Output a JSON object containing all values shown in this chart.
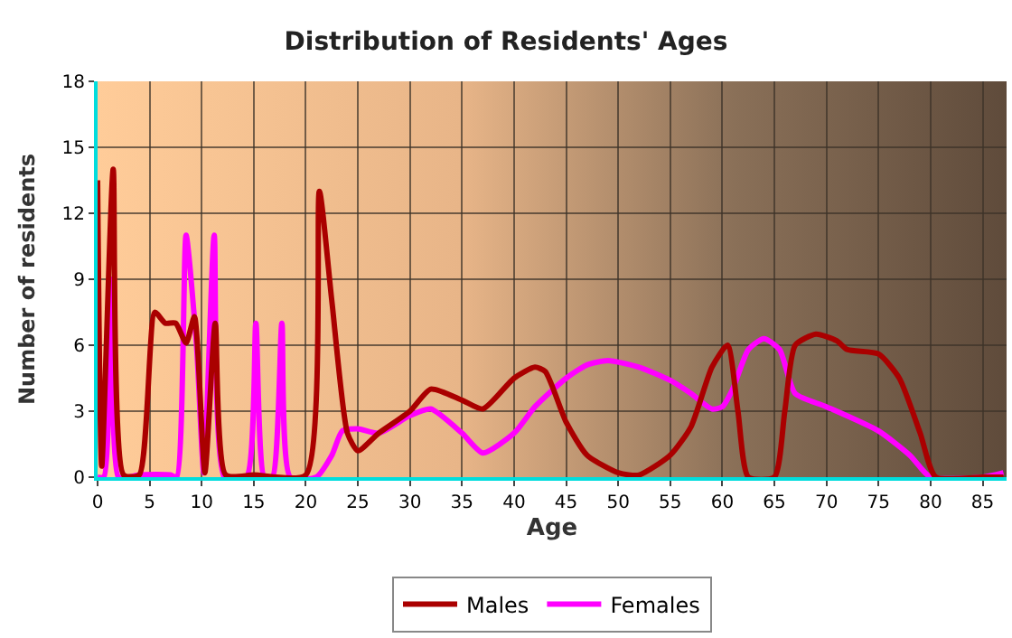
{
  "chart_data": {
    "type": "line",
    "title": "Distribution of Residents' Ages",
    "xlabel": "Age",
    "ylabel": "Number of residents",
    "xlim": [
      0,
      87.3
    ],
    "xticks": [
      0,
      5,
      10,
      15,
      20,
      25,
      30,
      35,
      40,
      45,
      50,
      55,
      60,
      65,
      70,
      75,
      80,
      85
    ],
    "ylim": [
      0,
      18
    ],
    "yticks": [
      0,
      3,
      6,
      9,
      12,
      15,
      18
    ],
    "grid": true,
    "legend": "bottom",
    "marker": "none",
    "line_style": "solid",
    "series": [
      {
        "name": "Males",
        "color": "#aa0000",
        "x": [
          0,
          0.4,
          1.5,
          2.5,
          4,
          5.5,
          6.5,
          7.5,
          8.5,
          9.3,
          10.3,
          11.3,
          12.3,
          15,
          20,
          21.3,
          22.5,
          24,
          25,
          27,
          30,
          32,
          35,
          37,
          40,
          42,
          43,
          45,
          47,
          50,
          52,
          55,
          57,
          59,
          60.5,
          61.5,
          62.5,
          65,
          66,
          67,
          69,
          71,
          72,
          75,
          77,
          79,
          80.5,
          85,
          87
        ],
        "values": [
          13.5,
          0.5,
          14,
          0.1,
          0.1,
          7.5,
          7,
          7,
          6.1,
          7.3,
          0.2,
          7,
          0.1,
          0.1,
          0.1,
          13,
          8,
          2,
          1.2,
          2,
          3,
          4,
          3.5,
          3.1,
          4.5,
          5,
          4.8,
          2.5,
          1,
          0.2,
          0.1,
          1,
          2.3,
          5,
          6,
          3,
          0,
          0,
          3,
          6,
          6.5,
          6.2,
          5.8,
          5.6,
          4.5,
          2,
          0,
          0,
          0
        ]
      },
      {
        "name": "Females",
        "color": "#ff00ff",
        "x": [
          0,
          0.6,
          1.3,
          2,
          3,
          4,
          7,
          7.6,
          8.5,
          9.5,
          10.2,
          11.2,
          12.2,
          14.3,
          15.2,
          16,
          16.8,
          17.7,
          18.5,
          21,
          22.5,
          23.5,
          25,
          27,
          30,
          32,
          35,
          37,
          40,
          42,
          45,
          47,
          49,
          52,
          55,
          57,
          59,
          60,
          61,
          62.5,
          64,
          65.5,
          67,
          70,
          75,
          78,
          80,
          85,
          87
        ],
        "values": [
          0,
          0,
          9,
          0,
          0,
          0.1,
          0.1,
          0,
          11,
          6,
          0.2,
          11,
          0,
          0,
          7,
          0,
          0,
          7,
          0,
          0,
          1,
          2.1,
          2.2,
          2,
          2.8,
          3.1,
          2,
          1.1,
          2,
          3.2,
          4.5,
          5.1,
          5.3,
          5,
          4.4,
          3.8,
          3.1,
          3.2,
          4,
          5.8,
          6.3,
          5.8,
          3.8,
          3.2,
          2.1,
          1,
          0,
          0,
          0.2
        ]
      }
    ]
  }
}
